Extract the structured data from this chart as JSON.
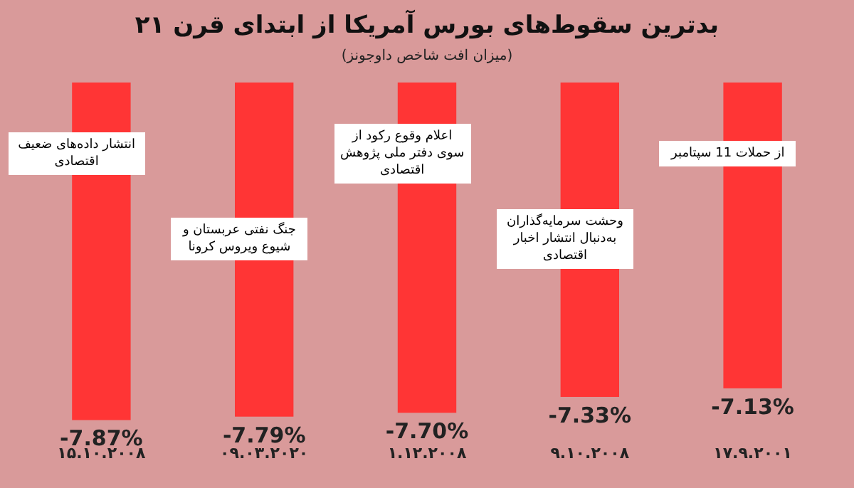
{
  "chart_data": {
    "type": "bar",
    "title": "بدترین سقوط‌های بورس آمریکا از ابتدای قرن ۲۱",
    "subtitle": "(میزان افت شاخص داوجونز)",
    "categories": [
      "۱۵.۱۰.۲۰۰۸",
      "۰۹.۰۳.۲۰۲۰",
      "۱.۱۲.۲۰۰۸",
      "۹.۱۰.۲۰۰۸",
      "۱۷.۹.۲۰۰۱"
    ],
    "values": [
      -7.87,
      -7.79,
      -7.7,
      -7.33,
      -7.13
    ],
    "value_labels": [
      "-7.87%",
      "-7.79%",
      "-7.70%",
      "-7.33%",
      "-7.13%"
    ],
    "color": "#ff3535",
    "tick_labels": "x",
    "annotations": [
      "انتشار داده‌های ضعیف اقتصادی",
      "جنگ نفتی عربستان و شیوع ویروس کرونا",
      "اعلام وقوع رکود از سوی دفتر ملی پژوهش اقتصادی",
      "وحشت سرمایه‌گذاران به‌دنبال انتشار اخبار اقتصادی",
      "از حملات 11 سپتامبر"
    ]
  }
}
